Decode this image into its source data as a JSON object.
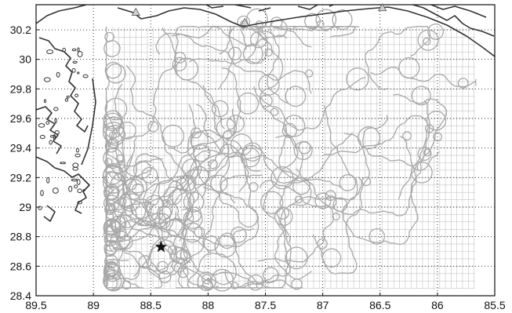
{
  "map": {
    "x_axis": {
      "ticks": [
        "89.5",
        "89",
        "88.5",
        "88",
        "87.5",
        "87",
        "86.5",
        "86",
        "85.5"
      ],
      "range": [
        89.5,
        85.5
      ],
      "direction": "decreasing-to-right"
    },
    "y_axis": {
      "ticks": [
        "28.4",
        "28.6",
        "28.8",
        "29",
        "29.2",
        "29.4",
        "29.6",
        "29.8",
        "30",
        "30.2"
      ],
      "range": [
        28.4,
        30.37
      ]
    },
    "dotted_grid": true,
    "fine_mesh": {
      "lon_range": [
        88.83,
        85.67
      ],
      "lat_range": [
        28.45,
        30.22
      ],
      "cell_deg": 0.05
    },
    "star_marker": {
      "lon": 88.41,
      "lat": 28.73
    },
    "triangle_markers": [
      {
        "lon": 88.63,
        "lat": 30.32
      },
      {
        "lon": 87.68,
        "lat": 30.25
      },
      {
        "lon": 86.48,
        "lat": 30.35
      }
    ],
    "colors": {
      "coast": "#333333",
      "tracks": "#a8a8a8",
      "mesh": "#c4c4c4",
      "axis": "#111111"
    }
  }
}
